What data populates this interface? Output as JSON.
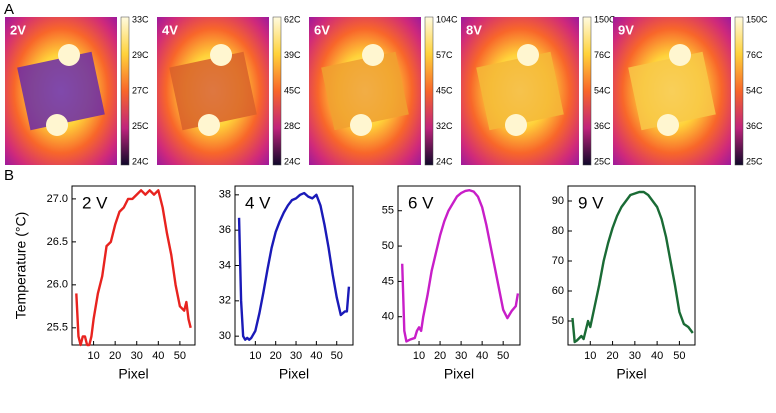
{
  "panel_labels": [
    "A",
    "B"
  ],
  "thermal_images": [
    {
      "label": "2V",
      "scale": [
        "33C",
        "29C",
        "27C",
        "25C",
        "24C"
      ]
    },
    {
      "label": "4V",
      "scale": [
        "62C",
        "39C",
        "45C",
        "28C",
        "24C"
      ]
    },
    {
      "label": "6V",
      "scale": [
        "104C",
        "57C",
        "45C",
        "32C",
        "24C"
      ]
    },
    {
      "label": "8V",
      "scale": [
        "150C",
        "76C",
        "54C",
        "36C",
        "25C"
      ]
    },
    {
      "label": "9V",
      "scale": [
        "150C",
        "76C",
        "54C",
        "36C",
        "25C"
      ]
    }
  ],
  "chart_data": [
    {
      "type": "line",
      "annotation": "2 V",
      "xlabel": "Pixel",
      "ylabel": "Temperature (°C)",
      "color": "#e8231f",
      "x": [
        2,
        3,
        4,
        5,
        6,
        7,
        8,
        9,
        10,
        12,
        14,
        16,
        18,
        20,
        22,
        24,
        26,
        28,
        30,
        32,
        34,
        36,
        38,
        40,
        42,
        44,
        46,
        48,
        50,
        52,
        53,
        54,
        55
      ],
      "values": [
        25.9,
        25.4,
        25.3,
        25.4,
        25.4,
        25.3,
        25.3,
        25.4,
        25.6,
        25.9,
        26.1,
        26.45,
        26.5,
        26.7,
        26.85,
        26.9,
        27.0,
        27.0,
        27.05,
        27.1,
        27.05,
        27.1,
        27.05,
        27.1,
        26.9,
        26.6,
        26.35,
        26.0,
        25.75,
        25.7,
        25.8,
        25.6,
        25.5
      ],
      "xlim": [
        0,
        57
      ],
      "ylim": [
        25.3,
        27.15
      ],
      "xticks": [
        10,
        20,
        30,
        40,
        50
      ],
      "yticks": [
        {
          "value": 25.5,
          "label": "25.5"
        },
        {
          "value": 26,
          "label": "26.0"
        },
        {
          "value": 26.5,
          "label": "26.5"
        },
        {
          "value": 27,
          "label": "27.0"
        }
      ]
    },
    {
      "type": "line",
      "annotation": "4 V",
      "xlabel": "Pixel",
      "color": "#1a1ab8",
      "x": [
        2,
        3,
        4,
        5,
        6,
        7,
        8,
        10,
        12,
        14,
        16,
        18,
        20,
        22,
        24,
        26,
        28,
        30,
        32,
        34,
        36,
        38,
        40,
        42,
        44,
        46,
        48,
        50,
        52,
        54,
        55,
        56
      ],
      "values": [
        36.7,
        32,
        30,
        29.8,
        29.9,
        29.8,
        29.9,
        30.3,
        31.3,
        32.5,
        33.8,
        35.0,
        35.9,
        36.5,
        37.0,
        37.4,
        37.7,
        37.8,
        38.0,
        38.1,
        37.9,
        37.8,
        38.0,
        37.4,
        36.3,
        35.0,
        33.5,
        32.2,
        31.2,
        31.4,
        31.4,
        32.8
      ],
      "xlim": [
        0,
        58
      ],
      "ylim": [
        29.5,
        38.5
      ],
      "xticks": [
        10,
        20,
        30,
        40,
        50
      ],
      "yticks": [
        30,
        32,
        34,
        36,
        38
      ]
    },
    {
      "type": "line",
      "annotation": "6 V",
      "xlabel": "Pixel",
      "color": "#c81ec8",
      "x": [
        2,
        3,
        4,
        6,
        8,
        9,
        10,
        11,
        12,
        14,
        16,
        18,
        20,
        22,
        24,
        26,
        28,
        30,
        32,
        34,
        36,
        38,
        40,
        42,
        44,
        46,
        48,
        50,
        52,
        54,
        56,
        57
      ],
      "values": [
        47.5,
        38,
        36.5,
        36.8,
        37,
        38,
        38.5,
        38,
        40,
        43,
        46.5,
        49,
        51.5,
        53.5,
        55,
        56,
        57,
        57.5,
        57.8,
        57.9,
        57.7,
        57,
        55.5,
        53,
        50,
        47,
        44,
        41,
        39.8,
        40.8,
        41.5,
        43.3
      ],
      "xlim": [
        0,
        58
      ],
      "ylim": [
        36,
        58.5
      ],
      "xticks": [
        10,
        20,
        30,
        40,
        50
      ],
      "yticks": [
        40,
        45,
        50,
        55
      ]
    },
    {
      "type": "line",
      "annotation": "9 V",
      "xlabel": "Pixel",
      "color": "#1a6b35",
      "x": [
        2,
        3,
        4,
        6,
        7,
        8,
        9,
        10,
        12,
        14,
        16,
        18,
        20,
        22,
        24,
        26,
        28,
        30,
        32,
        34,
        36,
        38,
        40,
        42,
        44,
        46,
        48,
        50,
        52,
        54,
        56
      ],
      "values": [
        51,
        43,
        43.5,
        45,
        44,
        47,
        50,
        48,
        55,
        62,
        70,
        76,
        81,
        85,
        88,
        90,
        92,
        92.5,
        93,
        93,
        92,
        90,
        88,
        84,
        78,
        70,
        62,
        53,
        49,
        48,
        46
      ],
      "xlim": [
        0,
        57
      ],
      "ylim": [
        42,
        95
      ],
      "xticks": [
        10,
        20,
        30,
        40,
        50
      ],
      "yticks": [
        50,
        60,
        70,
        80,
        90
      ]
    }
  ]
}
